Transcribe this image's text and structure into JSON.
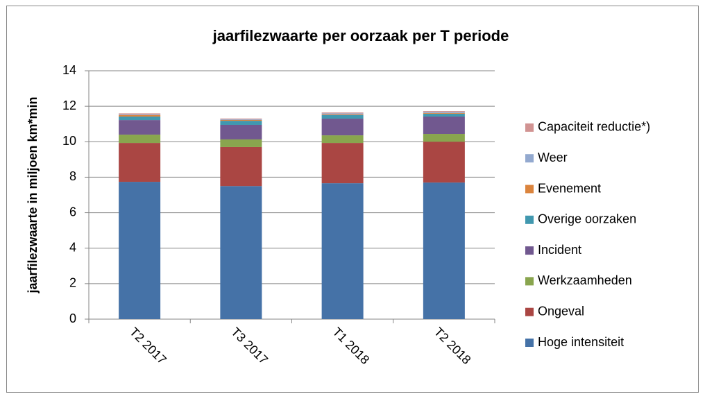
{
  "chart_data": {
    "type": "stacked_bar",
    "title": "jaarfilezwaarte per oorzaak per T periode",
    "y_label": "jaarfilezwaarte in miljoen km*min",
    "categories": [
      "T2 2017",
      "T3 2017",
      "T1 2018",
      "T2 2018"
    ],
    "series": [
      {
        "name": "Hoge intensiteit",
        "color": "#4572a7",
        "values": [
          7.74,
          7.5,
          7.66,
          7.7
        ]
      },
      {
        "name": "Ongeval",
        "color": "#aa4643",
        "values": [
          2.19,
          2.2,
          2.27,
          2.3
        ]
      },
      {
        "name": "Werkzaamheden",
        "color": "#89a54e",
        "values": [
          0.47,
          0.43,
          0.43,
          0.44
        ]
      },
      {
        "name": "Incident",
        "color": "#71588f",
        "values": [
          0.82,
          0.82,
          0.94,
          0.98
        ]
      },
      {
        "name": "Overige oorzaken",
        "color": "#4198af",
        "values": [
          0.2,
          0.23,
          0.2,
          0.16
        ]
      },
      {
        "name": "Evenement",
        "color": "#db843d",
        "values": [
          0.08,
          0.05,
          0.04,
          0.04
        ]
      },
      {
        "name": "Weer",
        "color": "#93a9cf",
        "values": [
          0.04,
          0.04,
          0.06,
          0.06
        ]
      },
      {
        "name": "Capaciteit reductie*)",
        "color": "#d19392",
        "values": [
          0.06,
          0.04,
          0.05,
          0.05
        ]
      }
    ],
    "ylim": [
      0,
      14
    ],
    "yticks": [
      0,
      2,
      4,
      6,
      8,
      10,
      12,
      14
    ],
    "grid": true,
    "legend": "right"
  }
}
